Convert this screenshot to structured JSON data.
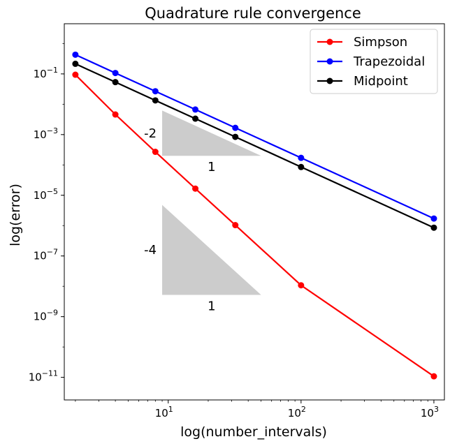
{
  "chart_data": {
    "type": "line",
    "title": "Quadrature rule convergence",
    "xlabel": "log(number_intervals)",
    "ylabel": "log(error)",
    "xscale": "log",
    "yscale": "log",
    "xlim": [
      1.65,
      1200
    ],
    "ylim": [
      1.8e-12,
      4.5
    ],
    "grid": false,
    "legend_position": "top-right",
    "x": [
      2,
      4,
      8,
      16,
      32,
      100,
      1000
    ],
    "series": [
      {
        "name": "Simpson",
        "color": "#ff0000",
        "values": [
          0.094,
          0.0046,
          0.00027,
          1.66e-05,
          1.04e-06,
          1.08e-08,
          1.08e-11
        ]
      },
      {
        "name": "Trapezoidal",
        "color": "#0000ff",
        "values": [
          0.43,
          0.107,
          0.0268,
          0.0067,
          0.00167,
          0.000171,
          1.71e-06
        ]
      },
      {
        "name": "Midpoint",
        "color": "#000000",
        "values": [
          0.215,
          0.0535,
          0.0134,
          0.00335,
          0.00084,
          8.55e-05,
          8.55e-07
        ]
      }
    ],
    "x_ticks": [
      {
        "base": "10",
        "exp": "1",
        "value": 10
      },
      {
        "base": "10",
        "exp": "2",
        "value": 100
      },
      {
        "base": "10",
        "exp": "3",
        "value": 1000
      }
    ],
    "y_ticks": [
      {
        "base": "10",
        "exp": "−1",
        "value": 0.1
      },
      {
        "base": "10",
        "exp": "−3",
        "value": 0.001
      },
      {
        "base": "10",
        "exp": "−5",
        "value": 1e-05
      },
      {
        "base": "10",
        "exp": "−7",
        "value": 1e-07
      },
      {
        "base": "10",
        "exp": "−9",
        "value": 1e-09
      },
      {
        "base": "10",
        "exp": "−11",
        "value": 1e-11
      }
    ],
    "annotations": [
      {
        "type": "slope-triangle",
        "x0": 9,
        "x1": 50,
        "y_top": 0.0062,
        "y_bottom": 0.0002,
        "slope_label": "-2",
        "run_label": "1",
        "color": "#cccccc"
      },
      {
        "type": "slope-triangle",
        "x0": 9,
        "x1": 50,
        "y_top": 4.8e-06,
        "y_bottom": 5.2e-09,
        "slope_label": "-4",
        "run_label": "1",
        "color": "#cccccc"
      }
    ]
  }
}
